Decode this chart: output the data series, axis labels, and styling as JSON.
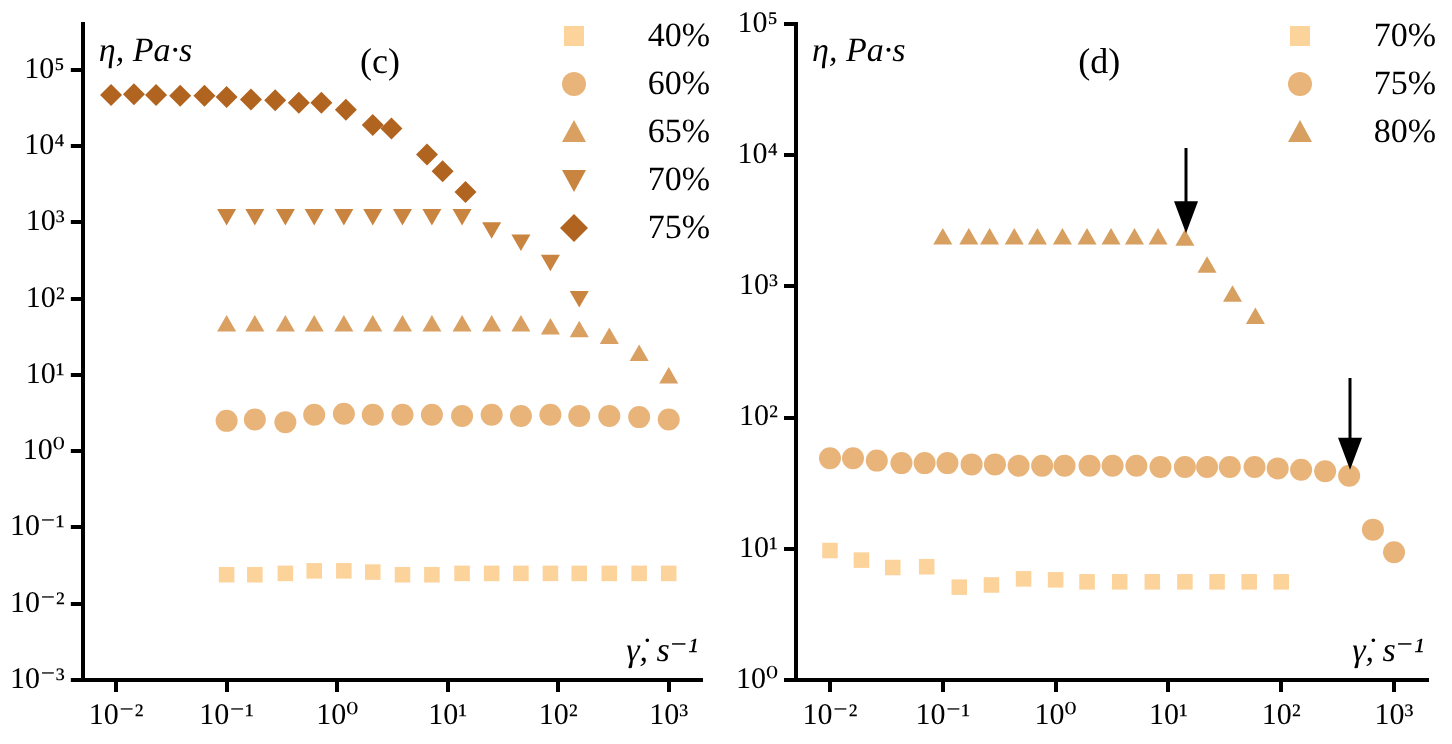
{
  "chart_data": [
    {
      "type": "scatter",
      "title": "(c)",
      "xlabel": "γ̇, s⁻¹",
      "ylabel": "η, Pa·s",
      "log": "xy",
      "grid": false,
      "legend": "top right",
      "xlim": [
        0.005,
        2000
      ],
      "ylim": [
        0.001,
        400000
      ],
      "xticks": [
        {
          "value": 0.01,
          "label": "10⁻²"
        },
        {
          "value": 0.1,
          "label": "10⁻¹"
        },
        {
          "value": 1,
          "label": "10⁰"
        },
        {
          "value": 10,
          "label": "10¹"
        },
        {
          "value": 100,
          "label": "10²"
        },
        {
          "value": 1000,
          "label": "10³"
        }
      ],
      "yticks": [
        {
          "value": 0.001,
          "label": "10⁻³"
        },
        {
          "value": 0.01,
          "label": "10⁻²"
        },
        {
          "value": 0.1,
          "label": "10⁻¹"
        },
        {
          "value": 1,
          "label": "10⁰"
        },
        {
          "value": 10,
          "label": "10¹"
        },
        {
          "value": 100,
          "label": "10²"
        },
        {
          "value": 1000,
          "label": "10³"
        },
        {
          "value": 10000,
          "label": "10⁴"
        },
        {
          "value": 100000,
          "label": "10⁵"
        }
      ],
      "series": [
        {
          "name": "40%",
          "color": "#fdd39c",
          "marker": "square",
          "x": [
            0.1,
            0.18,
            0.34,
            0.62,
            1.15,
            2.1,
            3.9,
            7.2,
            13.5,
            25,
            46,
            85,
            155,
            290,
            540,
            1000
          ],
          "values": [
            0.024,
            0.024,
            0.025,
            0.027,
            0.027,
            0.026,
            0.024,
            0.024,
            0.025,
            0.025,
            0.025,
            0.025,
            0.025,
            0.025,
            0.025,
            0.025
          ]
        },
        {
          "name": "60%",
          "color": "#e9b47a",
          "marker": "circle",
          "x": [
            0.1,
            0.18,
            0.34,
            0.62,
            1.15,
            2.1,
            3.9,
            7.2,
            13.5,
            25,
            46,
            85,
            155,
            290,
            540,
            1000
          ],
          "values": [
            2.5,
            2.6,
            2.4,
            3.0,
            3.1,
            3.0,
            3.0,
            3.0,
            2.9,
            3.0,
            2.9,
            3.0,
            2.9,
            2.9,
            2.8,
            2.6
          ]
        },
        {
          "name": "65%",
          "color": "#d9a062",
          "marker": "triangle",
          "x": [
            0.1,
            0.18,
            0.34,
            0.62,
            1.15,
            2.1,
            3.9,
            7.2,
            13.5,
            25,
            46,
            85,
            155,
            290,
            540,
            1000
          ],
          "values": [
            44,
            44,
            44,
            44,
            44,
            44,
            44,
            44,
            44,
            44,
            44,
            40,
            37,
            30,
            18,
            9.1
          ]
        },
        {
          "name": "70%",
          "color": "#c98540",
          "marker": "triangle-down",
          "x": [
            0.1,
            0.18,
            0.34,
            0.62,
            1.15,
            2.1,
            3.9,
            7.2,
            13.5,
            25,
            46,
            85,
            155
          ],
          "values": [
            1270,
            1270,
            1270,
            1270,
            1270,
            1270,
            1270,
            1270,
            1270,
            850,
            590,
            320,
            107
          ]
        },
        {
          "name": "75%",
          "color": "#b0641f",
          "marker": "diamond",
          "x": [
            0.009,
            0.0145,
            0.023,
            0.038,
            0.063,
            0.1,
            0.166,
            0.275,
            0.45,
            0.72,
            1.2,
            2.1,
            3.1,
            6.5,
            9,
            14.5
          ],
          "values": [
            47000,
            48000,
            47000,
            46000,
            46000,
            44000,
            41000,
            40000,
            37000,
            37000,
            30000,
            19000,
            17000,
            7800,
            4700,
            2500
          ]
        }
      ]
    },
    {
      "type": "scatter",
      "title": "(d)",
      "xlabel": "γ̇, s⁻¹",
      "ylabel": "η, Pa·s",
      "log": "xy",
      "grid": false,
      "legend": "top right",
      "xlim": [
        0.005,
        2000
      ],
      "ylim": [
        1,
        100000
      ],
      "xticks": [
        {
          "value": 0.01,
          "label": "10⁻²"
        },
        {
          "value": 0.1,
          "label": "10⁻¹"
        },
        {
          "value": 1,
          "label": "10⁰"
        },
        {
          "value": 10,
          "label": "10¹"
        },
        {
          "value": 100,
          "label": "10²"
        },
        {
          "value": 1000,
          "label": "10³"
        }
      ],
      "yticks": [
        {
          "value": 1,
          "label": "10⁰"
        },
        {
          "value": 10,
          "label": "10¹"
        },
        {
          "value": 100,
          "label": "10²"
        },
        {
          "value": 1000,
          "label": "10³"
        },
        {
          "value": 10000,
          "label": "10⁴"
        },
        {
          "value": 100000,
          "label": "10⁵"
        }
      ],
      "series": [
        {
          "name": "70%",
          "color": "#fdd39c",
          "marker": "square",
          "x": [
            0.01,
            0.019,
            0.036,
            0.072,
            0.14,
            0.27,
            0.52,
            1,
            1.9,
            3.7,
            7.2,
            14,
            27,
            52,
            100
          ],
          "values": [
            9.7,
            8.2,
            7.2,
            7.3,
            5.1,
            5.3,
            5.9,
            5.8,
            5.6,
            5.6,
            5.6,
            5.6,
            5.6,
            5.6,
            5.6
          ]
        },
        {
          "name": "75%",
          "color": "#e8b47a",
          "marker": "circle",
          "x": [
            0.01,
            0.016,
            0.026,
            0.043,
            0.069,
            0.11,
            0.18,
            0.29,
            0.47,
            0.76,
            1.2,
            2.0,
            3.2,
            5.2,
            8.5,
            14,
            22,
            35,
            58,
            93,
            150,
            245,
            400,
            650,
            1000
          ],
          "values": [
            49,
            49,
            47,
            45,
            45,
            45,
            44,
            44,
            43,
            43,
            43,
            43,
            43,
            43,
            42,
            42,
            42,
            42,
            42,
            41,
            40,
            39,
            36,
            14,
            9.4
          ]
        },
        {
          "name": "80%",
          "color": "#d7a060",
          "marker": "triangle",
          "x": [
            0.1,
            0.17,
            0.26,
            0.43,
            0.69,
            1.15,
            1.9,
            3.1,
            5,
            8.1,
            14,
            22,
            37,
            59
          ],
          "values": [
            2300,
            2300,
            2300,
            2300,
            2300,
            2300,
            2300,
            2300,
            2300,
            2300,
            2250,
            1400,
            840,
            570
          ]
        }
      ]
    }
  ]
}
